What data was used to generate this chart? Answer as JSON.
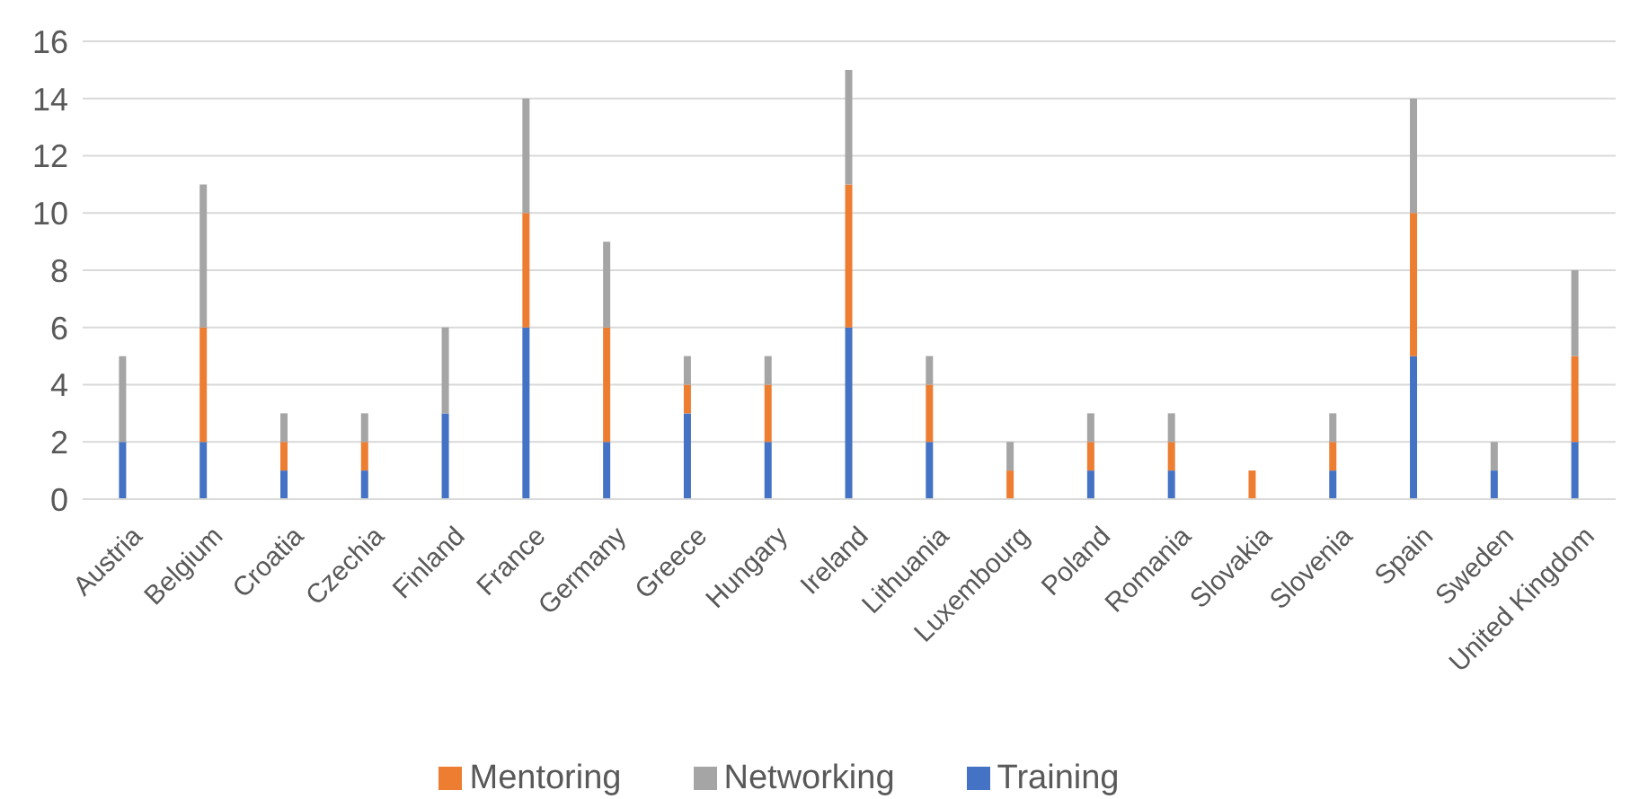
{
  "chart_data": {
    "type": "bar",
    "stacked": true,
    "categories": [
      "Austria",
      "Belgium",
      "Croatia",
      "Czechia",
      "Finland",
      "France",
      "Germany",
      "Greece",
      "Hungary",
      "Ireland",
      "Lithuania",
      "Luxembourg",
      "Poland",
      "Romania",
      "Slovakia",
      "Slovenia",
      "Spain",
      "Sweden",
      "United Kingdom"
    ],
    "series": [
      {
        "name": "Training",
        "color": "#4472c4",
        "values": [
          2,
          2,
          1,
          1,
          3,
          6,
          2,
          3,
          2,
          6,
          2,
          0,
          1,
          1,
          0,
          1,
          5,
          1,
          2
        ]
      },
      {
        "name": "Mentoring",
        "color": "#ed7d31",
        "values": [
          0,
          4,
          1,
          1,
          0,
          4,
          4,
          1,
          2,
          5,
          2,
          1,
          1,
          1,
          1,
          1,
          5,
          0,
          3
        ]
      },
      {
        "name": "Networking",
        "color": "#a5a5a5",
        "values": [
          3,
          5,
          1,
          1,
          3,
          4,
          3,
          1,
          1,
          4,
          1,
          1,
          1,
          1,
          0,
          1,
          4,
          1,
          3
        ]
      }
    ],
    "ylim": [
      0,
      16
    ],
    "yticks": [
      0,
      2,
      4,
      6,
      8,
      10,
      12,
      14,
      16
    ],
    "grid": "y",
    "legend": "bottom"
  }
}
